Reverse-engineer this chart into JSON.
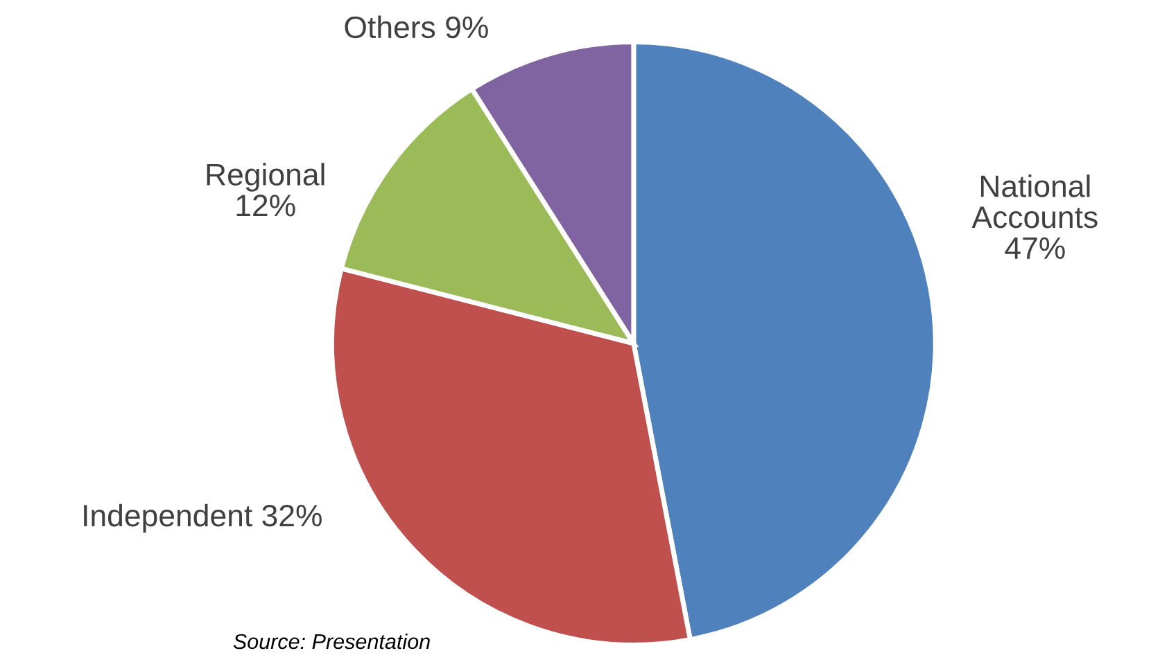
{
  "chart_data": {
    "type": "pie",
    "categories": [
      "National Accounts",
      "Independent",
      "Regional",
      "Others"
    ],
    "values": [
      47,
      32,
      12,
      9
    ],
    "colors": [
      "#4f81bd",
      "#c0504d",
      "#9bbb59",
      "#8064a2"
    ],
    "value_labels": [
      "47%",
      "32%",
      "12%",
      "9%"
    ],
    "annotations": [
      "Source: Presentation"
    ]
  }
}
